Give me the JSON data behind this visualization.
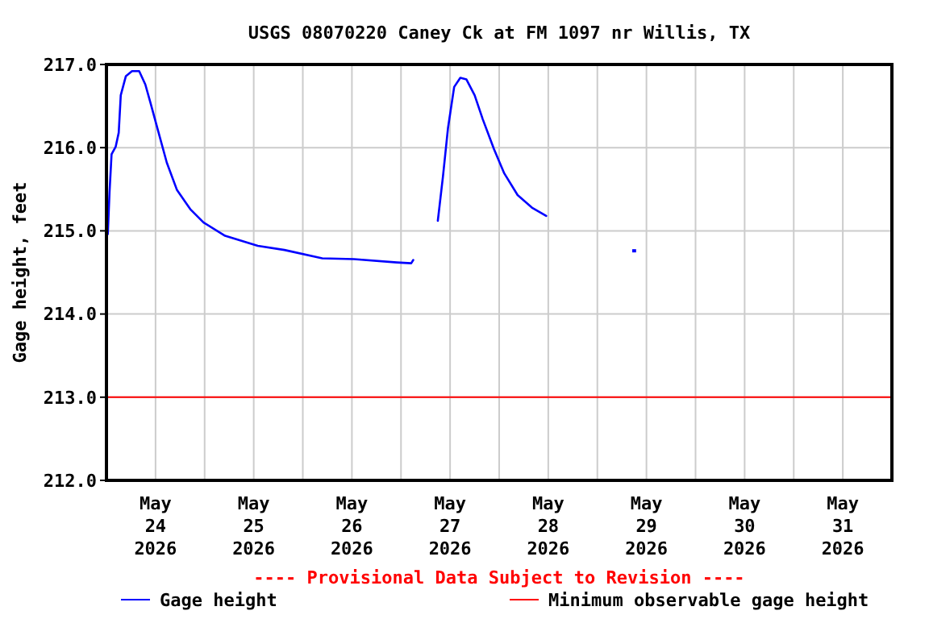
{
  "chart_data": {
    "type": "line",
    "title": "USGS 08070220 Caney Ck at FM 1097 nr Willis, TX",
    "ylabel": "Gage height, feet",
    "annotations": [
      "---- Provisional Data Subject to Revision ----"
    ],
    "x": [
      "2026-05-24T00:20",
      "2026-05-24T00:45",
      "2026-05-24T01:15",
      "2026-05-24T02:15",
      "2026-05-24T03:00",
      "2026-05-24T03:30",
      "2026-05-24T04:45",
      "2026-05-24T06:15",
      "2026-05-24T08:00",
      "2026-05-24T09:30",
      "2026-05-24T10:45",
      "2026-05-24T12:45",
      "2026-05-24T14:45",
      "2026-05-24T17:15",
      "2026-05-24T20:30",
      "2026-05-24T23:45",
      "2026-05-25T05:00",
      "2026-05-25T13:00",
      "2026-05-25T19:30",
      "2026-05-26T04:45",
      "2026-05-26T12:30",
      "2026-05-26T23:00",
      "2026-05-27T02:30",
      "2026-05-27T03:00",
      "2026-05-27T06:00",
      "2026-05-27T09:00",
      "2026-05-27T10:15",
      "2026-05-27T11:30",
      "2026-05-27T13:00",
      "2026-05-27T14:30",
      "2026-05-27T16:00",
      "2026-05-27T18:00",
      "2026-05-27T20:00",
      "2026-05-27T22:45",
      "2026-05-28T01:15",
      "2026-05-28T04:30",
      "2026-05-28T08:00",
      "2026-05-28T11:30"
    ],
    "series": [
      {
        "name": "Gage height",
        "color": "#0000ff",
        "values": [
          214.96,
          215.46,
          215.92,
          216.01,
          216.18,
          216.63,
          216.86,
          216.92,
          216.92,
          216.76,
          216.54,
          216.18,
          215.82,
          215.49,
          215.26,
          215.1,
          214.94,
          214.82,
          214.77,
          214.67,
          214.66,
          214.62,
          214.61,
          214.65,
          null,
          215.12,
          215.65,
          216.24,
          216.73,
          216.84,
          216.82,
          216.63,
          216.34,
          215.98,
          215.69,
          215.43,
          215.28,
          215.18
        ]
      },
      {
        "type": "scatter",
        "color": "#0000ff",
        "marker": "square",
        "x": [
          "2026-05-29T09:00"
        ],
        "values": [
          214.76
        ]
      }
    ],
    "ref_lines": [
      {
        "axis": "y",
        "value": 213.0,
        "label": "Minimum observable gage height",
        "color": "#ff0000"
      }
    ],
    "xlim": [
      "2026-05-24T00:00",
      "2026-06-01T00:00"
    ],
    "xticks": [
      {
        "value": "2026-05-24T00:00",
        "label": null
      },
      {
        "value": "2026-05-24T12:00",
        "label": "May\n24\n2026"
      },
      {
        "value": "2026-05-25T00:00",
        "label": null
      },
      {
        "value": "2026-05-25T12:00",
        "label": "May\n25\n2026"
      },
      {
        "value": "2026-05-26T00:00",
        "label": null
      },
      {
        "value": "2026-05-26T12:00",
        "label": "May\n26\n2026"
      },
      {
        "value": "2026-05-27T00:00",
        "label": null
      },
      {
        "value": "2026-05-27T12:00",
        "label": "May\n27\n2026"
      },
      {
        "value": "2026-05-28T00:00",
        "label": null
      },
      {
        "value": "2026-05-28T12:00",
        "label": "May\n28\n2026"
      },
      {
        "value": "2026-05-29T00:00",
        "label": null
      },
      {
        "value": "2026-05-29T12:00",
        "label": "May\n29\n2026"
      },
      {
        "value": "2026-05-30T00:00",
        "label": null
      },
      {
        "value": "2026-05-30T12:00",
        "label": "May\n30\n2026"
      },
      {
        "value": "2026-05-31T00:00",
        "label": null
      },
      {
        "value": "2026-05-31T12:00",
        "label": "May\n31\n2026"
      },
      {
        "value": "2026-06-01T00:00",
        "label": null
      }
    ],
    "ylim": [
      212,
      217
    ],
    "yticks": [
      {
        "value": 212,
        "label": "212.0"
      },
      {
        "value": 213,
        "label": "213.0"
      },
      {
        "value": 214,
        "label": "214.0"
      },
      {
        "value": 215,
        "label": "215.0"
      },
      {
        "value": 216,
        "label": "216.0"
      },
      {
        "value": 217,
        "label": "217.0"
      }
    ],
    "grid": true,
    "legend": "bottom"
  }
}
